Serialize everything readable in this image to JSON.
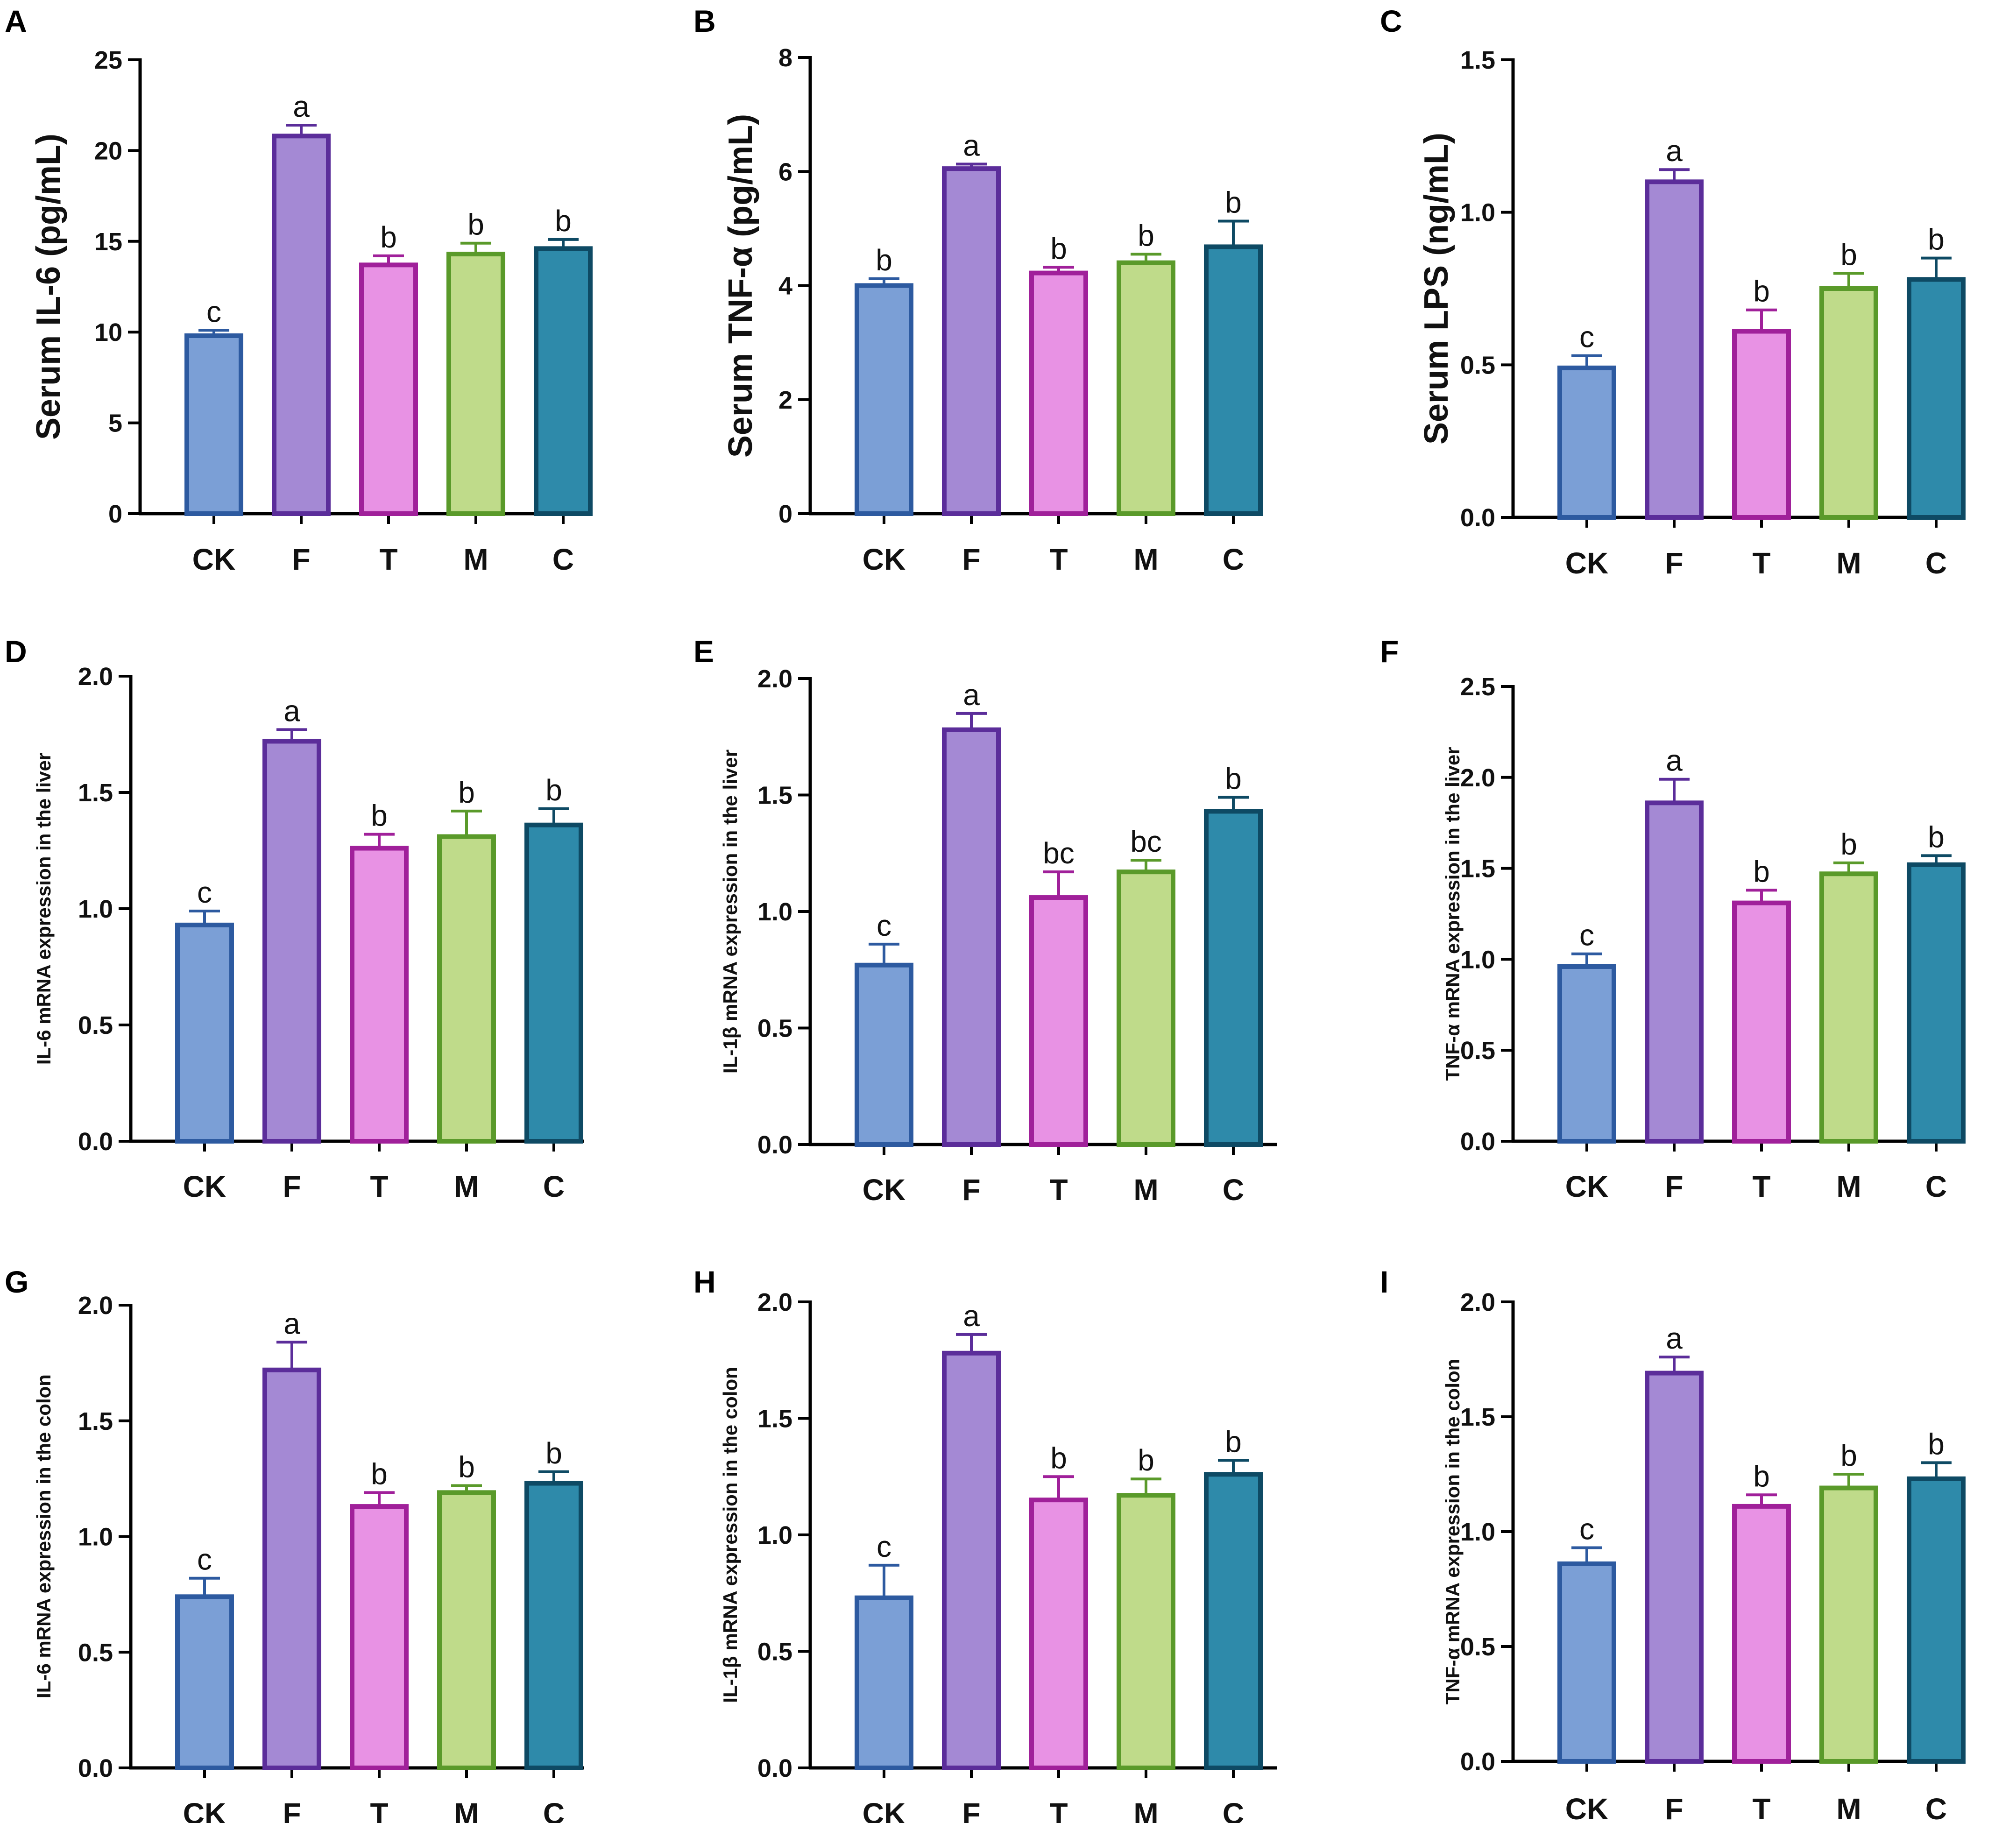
{
  "figure": {
    "title": ""
  },
  "categories": [
    "CK",
    "F",
    "T",
    "M",
    "C"
  ],
  "colors": {
    "fills": [
      "#7b9fd6",
      "#a489d4",
      "#e892e4",
      "#bfdb8a",
      "#2e8aaa"
    ],
    "strokes": [
      "#2d5aa0",
      "#5b2d9a",
      "#a0209a",
      "#5a9a2a",
      "#0e4a64"
    ],
    "axis": "#000000"
  },
  "chart_data": [
    {
      "panel": "A",
      "type": "bar",
      "ylabel": "Serum IL-6 (pg/mL)",
      "ylabel_style": "big",
      "ylim": [
        0,
        25
      ],
      "ticks": [
        0,
        5,
        10,
        15,
        20,
        25
      ],
      "tick_labels": [
        "0",
        "5",
        "10",
        "15",
        "20",
        "25"
      ],
      "categories": [
        "CK",
        "F",
        "T",
        "M",
        "C"
      ],
      "values": [
        9.8,
        20.8,
        13.7,
        14.3,
        14.6
      ],
      "errors": [
        0.3,
        0.6,
        0.5,
        0.6,
        0.5
      ],
      "significance": [
        "c",
        "a",
        "b",
        "b",
        "b"
      ]
    },
    {
      "panel": "B",
      "type": "bar",
      "ylabel": "Serum TNF-α (pg/mL)",
      "ylabel_style": "big",
      "ylim": [
        0,
        8
      ],
      "ticks": [
        0,
        2,
        4,
        6,
        8
      ],
      "tick_labels": [
        "0",
        "2",
        "4",
        "6",
        "8"
      ],
      "categories": [
        "CK",
        "F",
        "T",
        "M",
        "C"
      ],
      "values": [
        4.0,
        6.05,
        4.22,
        4.4,
        4.68
      ],
      "errors": [
        0.12,
        0.08,
        0.1,
        0.15,
        0.45
      ],
      "significance": [
        "b",
        "a",
        "b",
        "b",
        "b"
      ]
    },
    {
      "panel": "C",
      "type": "bar",
      "ylabel": "Serum LPS (ng/mL)",
      "ylabel_style": "big",
      "ylim": [
        0,
        1.5
      ],
      "ticks": [
        0,
        0.5,
        1.0,
        1.5
      ],
      "tick_labels": [
        "0.0",
        "0.5",
        "1.0",
        "1.5"
      ],
      "categories": [
        "CK",
        "F",
        "T",
        "M",
        "C"
      ],
      "values": [
        0.49,
        1.1,
        0.61,
        0.75,
        0.78
      ],
      "errors": [
        0.04,
        0.04,
        0.07,
        0.05,
        0.07
      ],
      "significance": [
        "c",
        "a",
        "b",
        "b",
        "b"
      ]
    },
    {
      "panel": "D",
      "type": "bar",
      "ylabel": "IL-6 mRNA expression in the liver",
      "ylabel_style": "small",
      "ylim": [
        0,
        2.0
      ],
      "ticks": [
        0,
        0.5,
        1.0,
        1.5,
        2.0
      ],
      "tick_labels": [
        "0.0",
        "0.5",
        "1.0",
        "1.5",
        "2.0"
      ],
      "categories": [
        "CK",
        "F",
        "T",
        "M",
        "C"
      ],
      "values": [
        0.93,
        1.72,
        1.26,
        1.31,
        1.36
      ],
      "errors": [
        0.06,
        0.05,
        0.06,
        0.11,
        0.07
      ],
      "significance": [
        "c",
        "a",
        "b",
        "b",
        "b"
      ]
    },
    {
      "panel": "E",
      "type": "bar",
      "ylabel": "IL-1β mRNA expression in the liver",
      "ylabel_style": "small",
      "ylim": [
        0,
        2.0
      ],
      "ticks": [
        0,
        0.5,
        1.0,
        1.5,
        2.0
      ],
      "tick_labels": [
        "0.0",
        "0.5",
        "1.0",
        "1.5",
        "2.0"
      ],
      "categories": [
        "CK",
        "F",
        "T",
        "M",
        "C"
      ],
      "values": [
        0.77,
        1.78,
        1.06,
        1.17,
        1.43
      ],
      "errors": [
        0.09,
        0.07,
        0.11,
        0.05,
        0.06
      ],
      "significance": [
        "c",
        "a",
        "bc",
        "bc",
        "b"
      ]
    },
    {
      "panel": "F",
      "type": "bar",
      "ylabel": "TNF-α mRNA expression in the liver",
      "ylabel_style": "small",
      "ylim": [
        0,
        2.5
      ],
      "ticks": [
        0,
        0.5,
        1.0,
        1.5,
        2.0,
        2.5
      ],
      "tick_labels": [
        "0.0",
        "0.5",
        "1.0",
        "1.5",
        "2.0",
        "2.5"
      ],
      "categories": [
        "CK",
        "F",
        "T",
        "M",
        "C"
      ],
      "values": [
        0.96,
        1.86,
        1.31,
        1.47,
        1.52
      ],
      "errors": [
        0.07,
        0.13,
        0.07,
        0.06,
        0.05
      ],
      "significance": [
        "c",
        "a",
        "b",
        "b",
        "b"
      ]
    },
    {
      "panel": "G",
      "type": "bar",
      "ylabel": "IL-6 mRNA expression in the colon",
      "ylabel_style": "small",
      "ylim": [
        0,
        2.0
      ],
      "ticks": [
        0,
        0.5,
        1.0,
        1.5,
        2.0
      ],
      "tick_labels": [
        "0.0",
        "0.5",
        "1.0",
        "1.5",
        "2.0"
      ],
      "categories": [
        "CK",
        "F",
        "T",
        "M",
        "C"
      ],
      "values": [
        0.74,
        1.72,
        1.13,
        1.19,
        1.23
      ],
      "errors": [
        0.08,
        0.12,
        0.06,
        0.03,
        0.05
      ],
      "significance": [
        "c",
        "a",
        "b",
        "b",
        "b"
      ]
    },
    {
      "panel": "H",
      "type": "bar",
      "ylabel": "IL-1β mRNA expression in the colon",
      "ylabel_style": "small",
      "ylim": [
        0,
        2.0
      ],
      "ticks": [
        0,
        0.5,
        1.0,
        1.5,
        2.0
      ],
      "tick_labels": [
        "0.0",
        "0.5",
        "1.0",
        "1.5",
        "2.0"
      ],
      "categories": [
        "CK",
        "F",
        "T",
        "M",
        "C"
      ],
      "values": [
        0.73,
        1.78,
        1.15,
        1.17,
        1.26
      ],
      "errors": [
        0.14,
        0.08,
        0.1,
        0.07,
        0.06
      ],
      "significance": [
        "c",
        "a",
        "b",
        "b",
        "b"
      ]
    },
    {
      "panel": "I",
      "type": "bar",
      "ylabel": "TNF-α mRNA expression in the colon",
      "ylabel_style": "small",
      "ylim": [
        0,
        2.0
      ],
      "ticks": [
        0,
        0.5,
        1.0,
        1.5,
        2.0
      ],
      "tick_labels": [
        "0.0",
        "0.5",
        "1.0",
        "1.5",
        "2.0"
      ],
      "categories": [
        "CK",
        "F",
        "T",
        "M",
        "C"
      ],
      "values": [
        0.86,
        1.69,
        1.11,
        1.19,
        1.23
      ],
      "errors": [
        0.07,
        0.07,
        0.05,
        0.06,
        0.07
      ],
      "significance": [
        "c",
        "a",
        "b",
        "b",
        "b"
      ]
    }
  ]
}
